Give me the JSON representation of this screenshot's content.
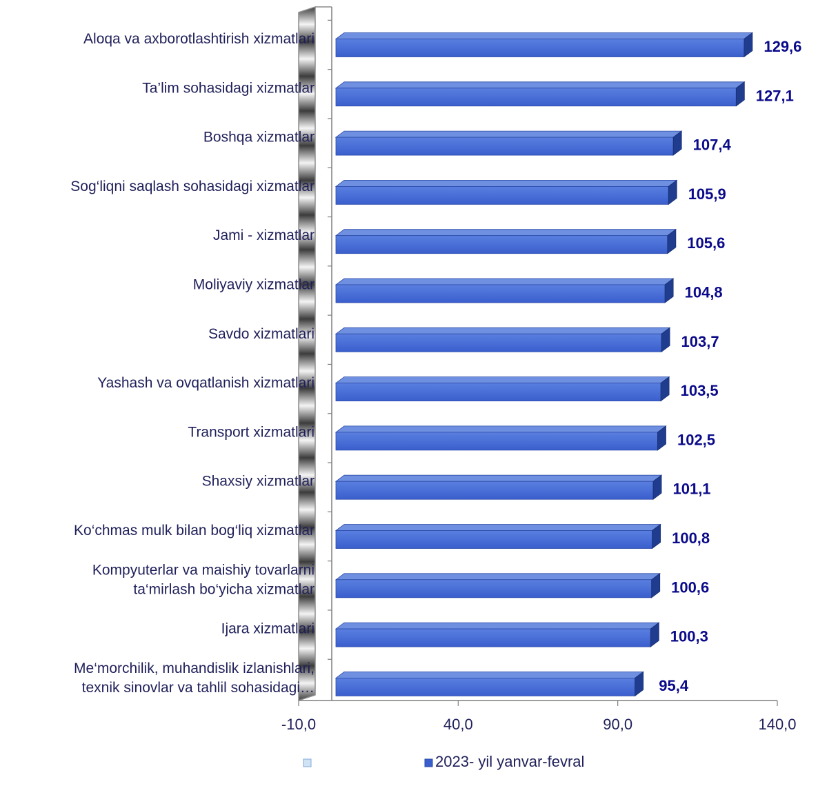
{
  "chart_data": {
    "type": "bar",
    "orientation": "horizontal",
    "categories": [
      [
        "Aloqa va axborotlashtirish xizmatlari"
      ],
      [
        "Ta’lim sohasidagi xizmatlar"
      ],
      [
        "Boshqa xizmatlar"
      ],
      [
        "Sog‘liqni saqlash sohasidagi xizmatlar"
      ],
      [
        "Jami - xizmatlar"
      ],
      [
        "Moliyaviy  xizmatlar"
      ],
      [
        "Savdo xizmatlari"
      ],
      [
        "Yashash va ovqatlanish xizmatlari"
      ],
      [
        "Transport xizmatlari"
      ],
      [
        "Shaxsiy xizmatlar"
      ],
      [
        "Ko‘chmas mulk bilan bog‘liq xizmatlar"
      ],
      [
        "Kompyuterlar va maishiy tovarlarni",
        "ta‘mirlash bo‘yicha xizmatlar"
      ],
      [
        "Ijara xizmatlari"
      ],
      [
        "Me‘morchilik, muhandislik izlanishlari,",
        "texnik sinovlar va tahlil sohasidagi…"
      ]
    ],
    "series": [
      {
        "name": "2023- yil yanvar-fevral",
        "values": [
          129.6,
          127.1,
          107.4,
          105.9,
          105.6,
          104.8,
          103.7,
          103.5,
          102.5,
          101.1,
          100.8,
          100.6,
          100.3,
          95.4
        ],
        "data_labels": [
          "129,6",
          "127,1",
          "107,4",
          "105,9",
          "105,6",
          "104,8",
          "103,7",
          "103,5",
          "102,5",
          "101,1",
          "100,8",
          "100,6",
          "100,3",
          "95,4"
        ]
      }
    ],
    "xlim": [
      -10,
      140
    ],
    "x_ticks": [
      -10,
      40,
      90,
      140
    ],
    "x_tick_labels": [
      "-10,0",
      "40,0",
      "90,0",
      "140,0"
    ],
    "legend_entries": [
      "",
      "2023- yil yanvar-fevral"
    ],
    "legend_position": "bottom",
    "colors": {
      "bar_front": "#3a5fcd",
      "bar_top": "#6f8fe0",
      "bar_side": "#1f3c8f",
      "data_label": "#0a0a8a",
      "axis": "#7f7f7f",
      "empty_legend": "#cfe3f5"
    }
  }
}
